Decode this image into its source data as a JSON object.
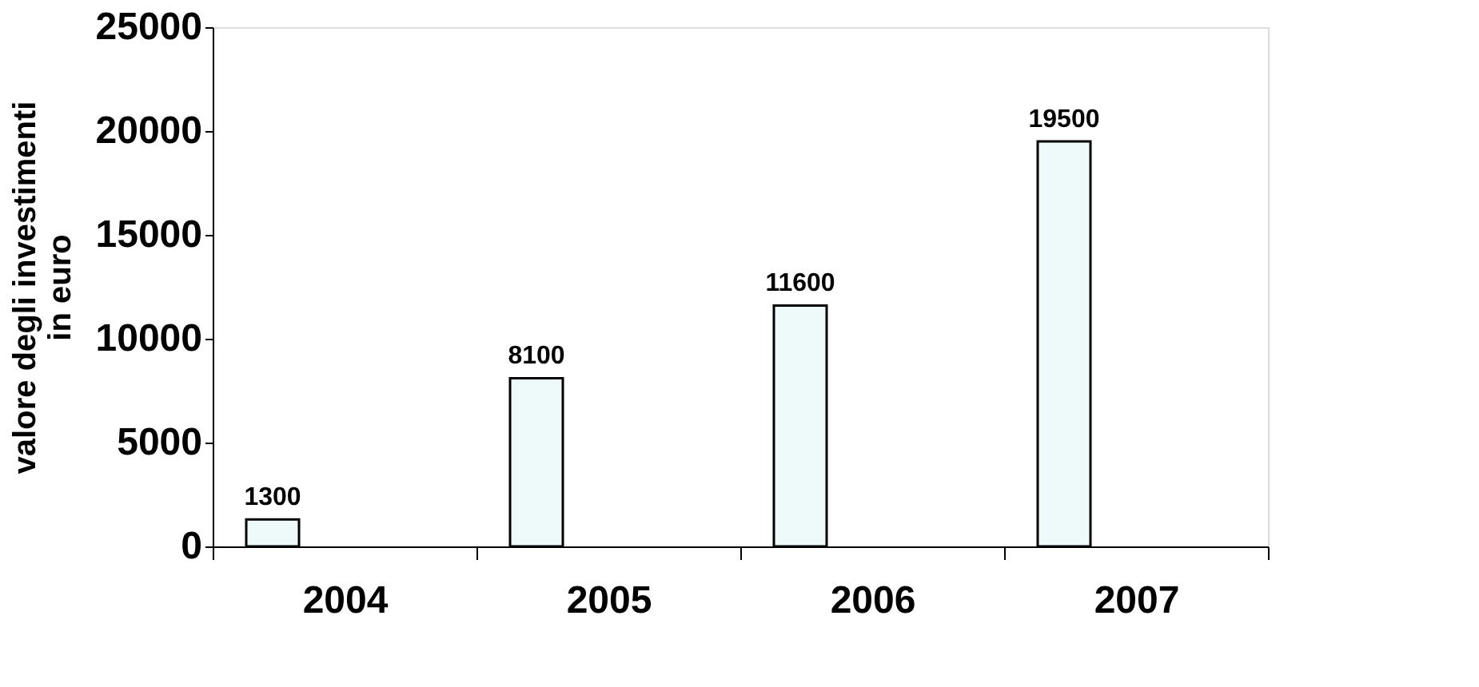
{
  "chart_data": {
    "type": "bar",
    "ylabel": "valore degli investimenti\nin euro",
    "categories": [
      "2004",
      "2005",
      "2006",
      "2007"
    ],
    "values": [
      1300,
      8100,
      11600,
      19500
    ],
    "color": "#eefafa",
    "ylim": [
      0,
      25000
    ],
    "yticks": [
      0,
      5000,
      10000,
      15000,
      20000,
      25000
    ],
    "data_labels": true
  }
}
